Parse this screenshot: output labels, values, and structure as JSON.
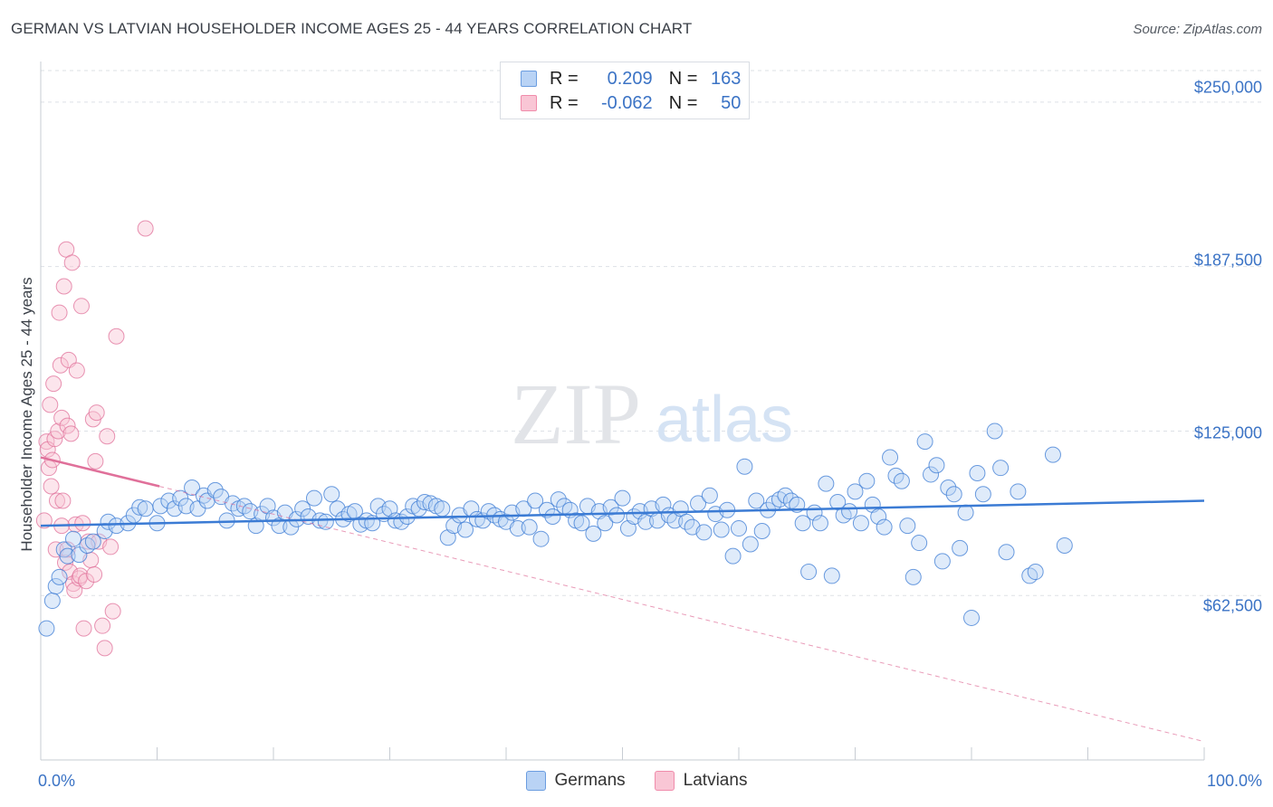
{
  "title": "GERMAN VS LATVIAN HOUSEHOLDER INCOME AGES 25 - 44 YEARS CORRELATION CHART",
  "source": "Source: ZipAtlas.com",
  "watermark": {
    "zip": "ZIP",
    "atlas": "atlas"
  },
  "stats": [
    {
      "r_label": "R =",
      "r_value": "0.209",
      "n_label": "N =",
      "n_value": "163",
      "color": "#6b9de0",
      "fill": "#b9d3f5"
    },
    {
      "r_label": "R =",
      "r_value": "-0.062",
      "n_label": "N =",
      "n_value": "50",
      "color": "#f08cab",
      "fill": "#f9c6d5"
    }
  ],
  "legend": [
    {
      "label": "Germans",
      "color": "#6b9de0",
      "fill": "#b9d3f5"
    },
    {
      "label": "Latvians",
      "color": "#f08cab",
      "fill": "#f9c6d5"
    }
  ],
  "chart_data": {
    "type": "scatter",
    "title": "GERMAN VS LATVIAN HOUSEHOLDER INCOME AGES 25 - 44 YEARS CORRELATION CHART",
    "xlabel": "",
    "ylabel": "Householder Income Ages 25 - 44 years",
    "xlim": [
      0,
      100
    ],
    "ylim": [
      0,
      262000
    ],
    "x_tick_labels": [
      "0.0%",
      "100.0%"
    ],
    "y_ticks": [
      62500,
      125000,
      187500,
      250000
    ],
    "y_tick_labels": [
      "$62,500",
      "$125,000",
      "$187,500",
      "$250,000"
    ],
    "grid": "horizontal-dashed",
    "colors": {
      "germans": "#3b7bd4",
      "latvians": "#e0709a"
    },
    "series": [
      {
        "name": "Germans",
        "trend": {
          "x": [
            0,
            100
          ],
          "y": [
            89000,
            98500
          ]
        },
        "points": [
          [
            0.5,
            50000
          ],
          [
            1.0,
            60500
          ],
          [
            1.3,
            66000
          ],
          [
            1.6,
            69500
          ],
          [
            2.0,
            80000
          ],
          [
            2.3,
            77500
          ],
          [
            2.8,
            84000
          ],
          [
            3.3,
            78000
          ],
          [
            4.0,
            81500
          ],
          [
            4.5,
            83000
          ],
          [
            5.5,
            87000
          ],
          [
            5.8,
            90500
          ],
          [
            6.5,
            89000
          ],
          [
            7.5,
            90000
          ],
          [
            8.0,
            93000
          ],
          [
            8.5,
            96000
          ],
          [
            9.0,
            95500
          ],
          [
            10.0,
            90000
          ],
          [
            10.3,
            96500
          ],
          [
            11.0,
            98500
          ],
          [
            11.5,
            95500
          ],
          [
            12.0,
            99500
          ],
          [
            12.5,
            96500
          ],
          [
            13.0,
            103500
          ],
          [
            13.5,
            95500
          ],
          [
            14.0,
            100500
          ],
          [
            14.3,
            98500
          ],
          [
            15.0,
            102500
          ],
          [
            15.5,
            100000
          ],
          [
            16.0,
            91000
          ],
          [
            16.5,
            97500
          ],
          [
            17.0,
            95500
          ],
          [
            17.5,
            96500
          ],
          [
            18.0,
            94500
          ],
          [
            18.5,
            89000
          ],
          [
            19.0,
            93500
          ],
          [
            19.5,
            96500
          ],
          [
            20.0,
            92000
          ],
          [
            20.5,
            89000
          ],
          [
            21.0,
            94000
          ],
          [
            21.5,
            88500
          ],
          [
            22.0,
            91500
          ],
          [
            22.5,
            95500
          ],
          [
            23.0,
            92500
          ],
          [
            23.5,
            99500
          ],
          [
            24.0,
            91000
          ],
          [
            24.5,
            90500
          ],
          [
            25.0,
            101000
          ],
          [
            25.5,
            95500
          ],
          [
            26.0,
            91500
          ],
          [
            26.5,
            93500
          ],
          [
            27.0,
            94500
          ],
          [
            27.5,
            89500
          ],
          [
            28.0,
            91000
          ],
          [
            28.5,
            90000
          ],
          [
            29.0,
            96500
          ],
          [
            29.5,
            93500
          ],
          [
            30.0,
            95500
          ],
          [
            30.5,
            91000
          ],
          [
            31.0,
            90500
          ],
          [
            31.5,
            92500
          ],
          [
            32.0,
            96500
          ],
          [
            32.5,
            95500
          ],
          [
            33.0,
            98000
          ],
          [
            33.5,
            97500
          ],
          [
            34.0,
            96500
          ],
          [
            34.5,
            95500
          ],
          [
            35.0,
            84500
          ],
          [
            35.5,
            89000
          ],
          [
            36.0,
            93000
          ],
          [
            36.5,
            87500
          ],
          [
            37.0,
            95500
          ],
          [
            37.5,
            91500
          ],
          [
            38.0,
            91000
          ],
          [
            38.5,
            94500
          ],
          [
            39.0,
            93000
          ],
          [
            39.5,
            91500
          ],
          [
            40.0,
            90500
          ],
          [
            40.5,
            94000
          ],
          [
            41.0,
            88000
          ],
          [
            41.5,
            95500
          ],
          [
            42.0,
            88500
          ],
          [
            42.5,
            98500
          ],
          [
            43.0,
            84000
          ],
          [
            43.5,
            95000
          ],
          [
            44.0,
            92500
          ],
          [
            44.5,
            99000
          ],
          [
            45.0,
            96500
          ],
          [
            45.5,
            95000
          ],
          [
            46.0,
            91000
          ],
          [
            46.5,
            90000
          ],
          [
            47.0,
            96500
          ],
          [
            47.5,
            86000
          ],
          [
            48.0,
            94500
          ],
          [
            48.5,
            90000
          ],
          [
            49.0,
            96000
          ],
          [
            49.5,
            93000
          ],
          [
            50.0,
            99500
          ],
          [
            50.5,
            88000
          ],
          [
            51.0,
            92500
          ],
          [
            51.5,
            94500
          ],
          [
            52.0,
            90500
          ],
          [
            52.5,
            95500
          ],
          [
            53.0,
            91000
          ],
          [
            53.5,
            97000
          ],
          [
            54.0,
            93000
          ],
          [
            54.5,
            91000
          ],
          [
            55.0,
            95500
          ],
          [
            55.5,
            90500
          ],
          [
            56.0,
            88500
          ],
          [
            56.5,
            97500
          ],
          [
            57.0,
            86500
          ],
          [
            57.5,
            100500
          ],
          [
            58.0,
            93500
          ],
          [
            58.5,
            87500
          ],
          [
            59.0,
            95000
          ],
          [
            59.5,
            77500
          ],
          [
            60.0,
            88000
          ],
          [
            60.5,
            111500
          ],
          [
            61.0,
            82000
          ],
          [
            61.5,
            98500
          ],
          [
            62.0,
            87000
          ],
          [
            62.5,
            95000
          ],
          [
            63.0,
            97500
          ],
          [
            63.5,
            99000
          ],
          [
            64.0,
            100500
          ],
          [
            64.5,
            98500
          ],
          [
            65.0,
            97000
          ],
          [
            65.5,
            90000
          ],
          [
            66.0,
            71500
          ],
          [
            66.5,
            94000
          ],
          [
            67.0,
            90000
          ],
          [
            67.5,
            105000
          ],
          [
            68.0,
            70000
          ],
          [
            68.5,
            98000
          ],
          [
            69.0,
            93000
          ],
          [
            69.5,
            94500
          ],
          [
            70.0,
            102000
          ],
          [
            70.5,
            90000
          ],
          [
            71.0,
            106000
          ],
          [
            71.5,
            97000
          ],
          [
            72.0,
            92500
          ],
          [
            72.5,
            88500
          ],
          [
            73.0,
            115000
          ],
          [
            73.5,
            108000
          ],
          [
            74.0,
            106000
          ],
          [
            74.5,
            89000
          ],
          [
            75.0,
            69500
          ],
          [
            75.5,
            82500
          ],
          [
            76.0,
            121000
          ],
          [
            76.5,
            108500
          ],
          [
            77.0,
            112000
          ],
          [
            77.5,
            75500
          ],
          [
            78.0,
            103500
          ],
          [
            78.5,
            101000
          ],
          [
            79.0,
            80500
          ],
          [
            79.5,
            94000
          ],
          [
            80.0,
            54000
          ],
          [
            80.5,
            109000
          ],
          [
            81.0,
            101000
          ],
          [
            82.0,
            125000
          ],
          [
            82.5,
            111000
          ],
          [
            83.0,
            79000
          ],
          [
            84.0,
            102000
          ],
          [
            85.0,
            70000
          ],
          [
            85.5,
            71500
          ],
          [
            87.0,
            116000
          ],
          [
            88.0,
            81500
          ]
        ]
      },
      {
        "name": "Latvians",
        "trend_solid": {
          "x": [
            0,
            10.2
          ],
          "y": [
            115000,
            104000
          ]
        },
        "trend_dashed": {
          "x": [
            0,
            100
          ],
          "y": [
            115000,
            7000
          ]
        },
        "points": [
          [
            0.3,
            91000
          ],
          [
            0.5,
            121000
          ],
          [
            0.6,
            118000
          ],
          [
            0.7,
            111000
          ],
          [
            0.8,
            135000
          ],
          [
            0.9,
            104000
          ],
          [
            1.0,
            114000
          ],
          [
            1.1,
            143000
          ],
          [
            1.2,
            122000
          ],
          [
            1.3,
            80000
          ],
          [
            1.4,
            98500
          ],
          [
            1.5,
            125000
          ],
          [
            1.6,
            170000
          ],
          [
            1.7,
            150000
          ],
          [
            1.8,
            130000
          ],
          [
            1.9,
            98500
          ],
          [
            2.0,
            180000
          ],
          [
            2.1,
            75000
          ],
          [
            2.2,
            194000
          ],
          [
            2.3,
            127000
          ],
          [
            2.4,
            152000
          ],
          [
            2.5,
            71500
          ],
          [
            2.6,
            124000
          ],
          [
            2.7,
            189000
          ],
          [
            2.8,
            67000
          ],
          [
            2.9,
            64500
          ],
          [
            3.0,
            89500
          ],
          [
            3.1,
            148000
          ],
          [
            3.3,
            69000
          ],
          [
            3.4,
            70000
          ],
          [
            3.5,
            172500
          ],
          [
            3.6,
            90000
          ],
          [
            3.7,
            50000
          ],
          [
            3.9,
            68000
          ],
          [
            4.1,
            83000
          ],
          [
            4.3,
            76000
          ],
          [
            4.5,
            129500
          ],
          [
            4.6,
            70500
          ],
          [
            4.7,
            113500
          ],
          [
            4.8,
            132000
          ],
          [
            5.0,
            83000
          ],
          [
            5.3,
            51000
          ],
          [
            5.5,
            42500
          ],
          [
            5.7,
            123000
          ],
          [
            6.0,
            81000
          ],
          [
            6.2,
            56500
          ],
          [
            6.5,
            161000
          ],
          [
            9.0,
            202000
          ],
          [
            1.8,
            89000
          ],
          [
            2.3,
            80000
          ]
        ]
      }
    ]
  }
}
